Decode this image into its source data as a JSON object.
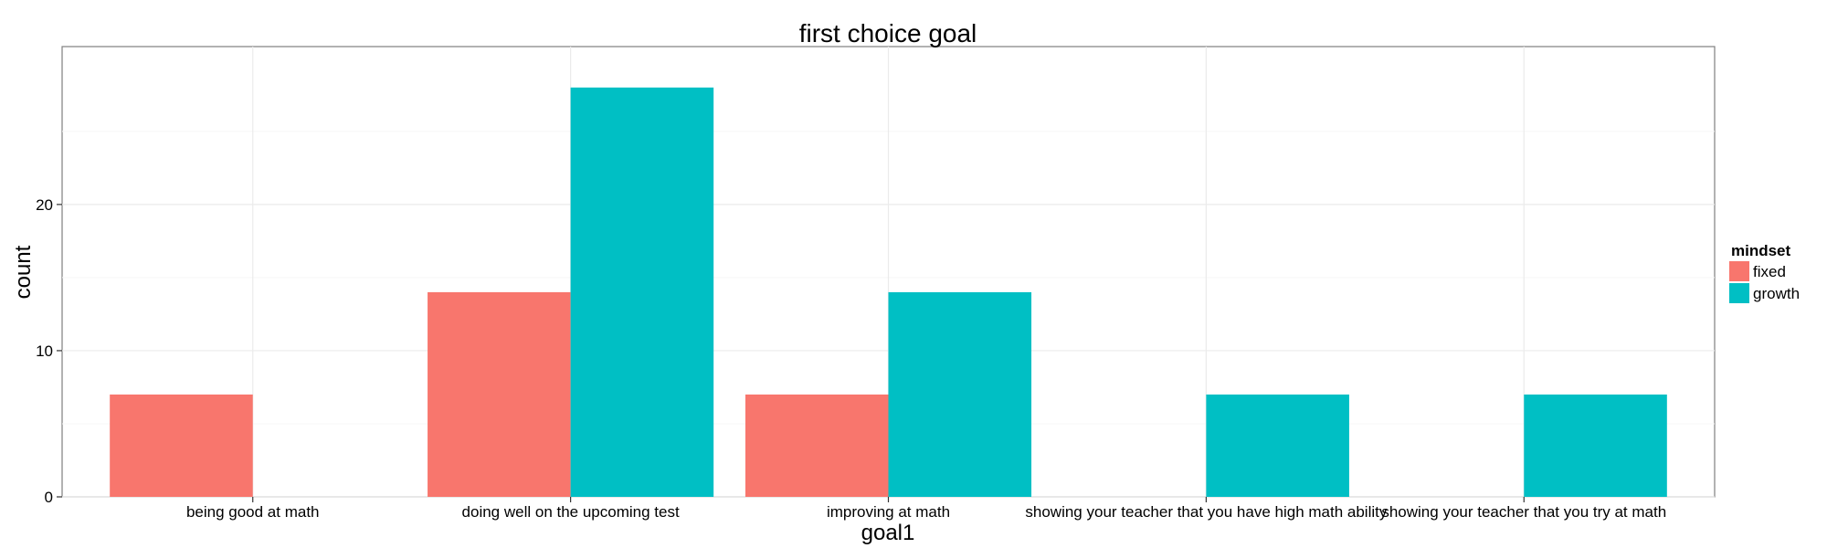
{
  "chart_data": {
    "type": "bar",
    "title": "first choice goal",
    "xlabel": "goal1",
    "ylabel": "count",
    "categories": [
      "being good at math",
      "doing well on the upcoming test",
      "improving at math",
      "showing your teacher that you have high math ability",
      "showing your teacher that you try at math"
    ],
    "series": [
      {
        "name": "fixed",
        "color": "#F8766D",
        "values": [
          7,
          14,
          7,
          0,
          0
        ]
      },
      {
        "name": "growth",
        "color": "#00BFC4",
        "values": [
          0,
          28,
          14,
          7,
          7
        ]
      }
    ],
    "layout_mode": "dodge",
    "ylim": [
      0,
      30.8
    ],
    "yticks": [
      0,
      10,
      20
    ],
    "grid": true,
    "legend": {
      "title": "mindset",
      "position": "right",
      "entries": [
        "fixed",
        "growth"
      ]
    }
  }
}
